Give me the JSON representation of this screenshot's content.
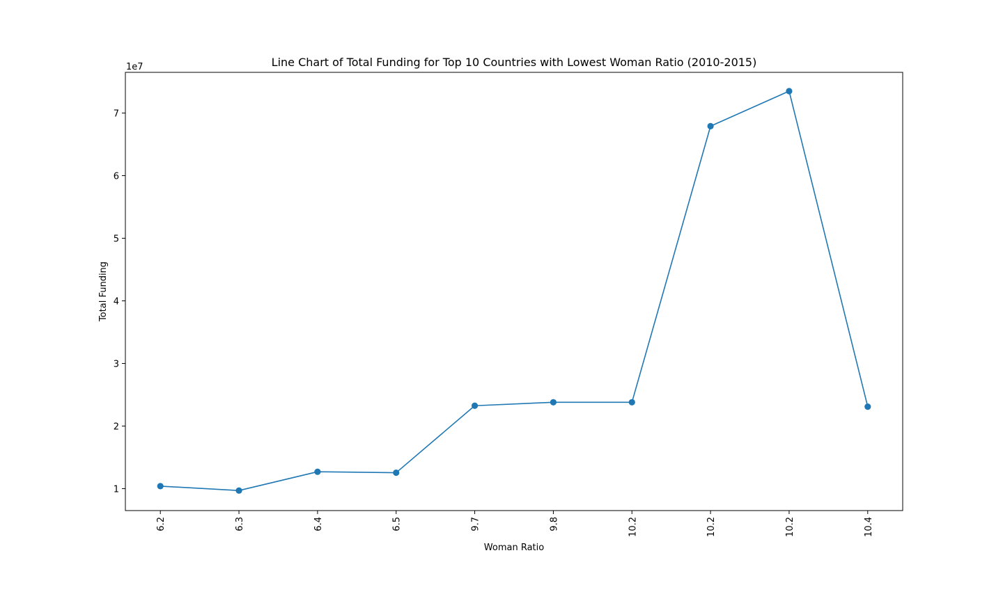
{
  "chart_data": {
    "type": "line",
    "title": "Line Chart of Total Funding for Top 10 Countries with Lowest Woman Ratio (2010-2015)",
    "xlabel": "Woman Ratio",
    "ylabel": "Total Funding",
    "y_offset_label": "1e7",
    "categories": [
      "6.2",
      "6.3",
      "6.4",
      "6.5",
      "9.7",
      "9.8",
      "10.2",
      "10.2",
      "10.2",
      "10.4"
    ],
    "series": [
      {
        "values": [
          10400000,
          9700000,
          12700000,
          12550000,
          23250000,
          23800000,
          23800000,
          67900000,
          73500000,
          23100000
        ],
        "color": "#1f77b4",
        "marker": "circle"
      }
    ],
    "ylim": [
      0.65,
      7.65
    ],
    "y_unit": 10000000,
    "y_ticks": [
      1,
      2,
      3,
      4,
      5,
      6,
      7
    ],
    "x_tick_rotation": "vertical",
    "grid": false,
    "legend": "none"
  }
}
